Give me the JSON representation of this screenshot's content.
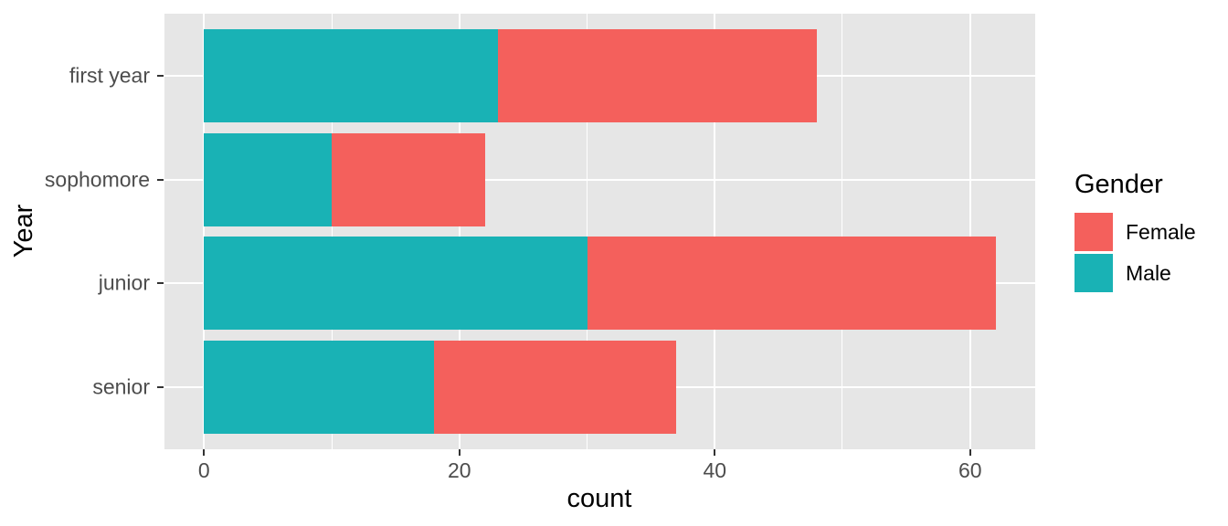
{
  "chart_data": {
    "type": "bar",
    "orientation": "horizontal",
    "stacked": true,
    "title": "",
    "xlabel": "count",
    "ylabel": "Year",
    "categories": [
      "first year",
      "sophomore",
      "junior",
      "senior"
    ],
    "series": [
      {
        "name": "Male",
        "color": "#19B2B5",
        "values": [
          23,
          10,
          30,
          18
        ]
      },
      {
        "name": "Female",
        "color": "#F4605C",
        "values": [
          25,
          12,
          32,
          19
        ]
      }
    ],
    "totals": [
      48,
      22,
      62,
      37
    ],
    "x_ticks": [
      0,
      20,
      40,
      60
    ],
    "x_minor_ticks": [
      10,
      30,
      50
    ],
    "xlim": [
      0,
      62
    ],
    "x_expansion": 0.05,
    "grid": true,
    "legend": {
      "title": "Gender",
      "entries": [
        "Female",
        "Male"
      ],
      "position": "right"
    },
    "colors": {
      "panel_background": "#E6E6E6",
      "gridline": "#FFFFFF",
      "tick_mark": "#333333",
      "tick_label": "#4D4D4D",
      "axis_title": "#000000"
    }
  }
}
